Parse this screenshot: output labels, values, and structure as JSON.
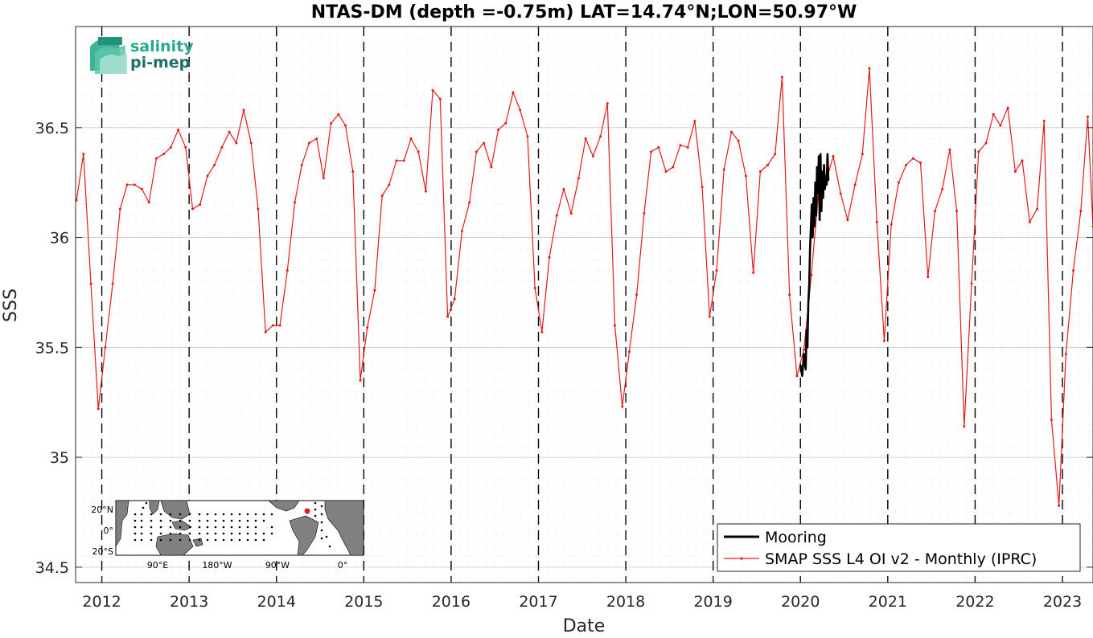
{
  "chart_data": {
    "type": "line",
    "title": "NTAS-DM (depth =-0.75m) LAT=14.74°N;LON=50.97°W",
    "xlabel": "Date",
    "ylabel": "SSS",
    "xlim": [
      2011.7,
      2023.35
    ],
    "ylim": [
      34.43,
      36.96
    ],
    "x_ticks": [
      2012,
      2013,
      2014,
      2015,
      2016,
      2017,
      2018,
      2019,
      2020,
      2021,
      2022,
      2023
    ],
    "x_tick_labels": [
      "2012",
      "2013",
      "2014",
      "2015",
      "2016",
      "2017",
      "2018",
      "2019",
      "2020",
      "2021",
      "2022",
      "2023"
    ],
    "y_ticks": [
      34.5,
      35,
      35.5,
      36,
      36.5
    ],
    "y_tick_labels": [
      "34.5",
      "35",
      "35.5",
      "36",
      "36.5"
    ],
    "grid": true,
    "year_markers": "dashed vertical lines at each Jan 1",
    "legend_position": "bottom-right",
    "series": [
      {
        "name": "Mooring",
        "color": "#000000",
        "x": [
          2020.0,
          2020.02,
          2020.04,
          2020.06,
          2020.07,
          2020.08,
          2020.09,
          2020.1,
          2020.11,
          2020.12,
          2020.13,
          2020.14,
          2020.15,
          2020.16,
          2020.17,
          2020.18,
          2020.19,
          2020.2,
          2020.21,
          2020.22,
          2020.23,
          2020.24,
          2020.25,
          2020.26,
          2020.27,
          2020.28,
          2020.29,
          2020.3,
          2020.31,
          2020.32
        ],
        "values": [
          35.42,
          35.37,
          35.47,
          35.4,
          35.58,
          35.5,
          35.7,
          35.78,
          35.95,
          36.05,
          36.15,
          36.0,
          36.18,
          36.05,
          36.25,
          36.1,
          36.32,
          36.2,
          36.37,
          36.08,
          36.38,
          36.12,
          36.3,
          36.18,
          36.33,
          36.22,
          36.28,
          36.24,
          36.38,
          36.26
        ]
      },
      {
        "name": "SMAP SSS L4 OI v2 - Monthly (IPRC)",
        "color": "#e41a1c",
        "x": [
          2011.71,
          2011.79,
          2011.875,
          2011.96,
          2012.04,
          2012.125,
          2012.21,
          2012.29,
          2012.375,
          2012.46,
          2012.54,
          2012.625,
          2012.71,
          2012.79,
          2012.875,
          2012.96,
          2013.04,
          2013.125,
          2013.21,
          2013.29,
          2013.375,
          2013.46,
          2013.54,
          2013.625,
          2013.71,
          2013.79,
          2013.875,
          2013.96,
          2014.04,
          2014.125,
          2014.21,
          2014.29,
          2014.375,
          2014.46,
          2014.54,
          2014.625,
          2014.71,
          2014.79,
          2014.875,
          2014.96,
          2015.04,
          2015.125,
          2015.21,
          2015.29,
          2015.375,
          2015.46,
          2015.54,
          2015.625,
          2015.71,
          2015.79,
          2015.875,
          2015.96,
          2016.04,
          2016.125,
          2016.21,
          2016.29,
          2016.375,
          2016.46,
          2016.54,
          2016.625,
          2016.71,
          2016.79,
          2016.875,
          2016.96,
          2017.04,
          2017.125,
          2017.21,
          2017.29,
          2017.375,
          2017.46,
          2017.54,
          2017.625,
          2017.71,
          2017.79,
          2017.875,
          2017.96,
          2018.04,
          2018.125,
          2018.21,
          2018.29,
          2018.375,
          2018.46,
          2018.54,
          2018.625,
          2018.71,
          2018.79,
          2018.875,
          2018.96,
          2019.04,
          2019.125,
          2019.21,
          2019.29,
          2019.375,
          2019.46,
          2019.54,
          2019.625,
          2019.71,
          2019.79,
          2019.875,
          2019.96,
          2020.04,
          2020.125,
          2020.21,
          2020.29,
          2020.375,
          2020.46,
          2020.54,
          2020.625,
          2020.71,
          2020.79,
          2020.875,
          2020.96,
          2021.04,
          2021.125,
          2021.21,
          2021.29,
          2021.375,
          2021.46,
          2021.54,
          2021.625,
          2021.71,
          2021.79,
          2021.875,
          2021.96,
          2022.04,
          2022.125,
          2022.21,
          2022.29,
          2022.375,
          2022.46,
          2022.54,
          2022.625,
          2022.71,
          2022.79,
          2022.875,
          2022.96,
          2023.04,
          2023.125,
          2023.21,
          2023.29,
          2023.35
        ],
        "values": [
          36.17,
          36.38,
          35.79,
          35.22,
          35.5,
          35.79,
          36.13,
          36.24,
          36.24,
          36.22,
          36.16,
          36.36,
          36.38,
          36.41,
          36.49,
          36.41,
          36.13,
          36.15,
          36.28,
          36.33,
          36.41,
          36.48,
          36.43,
          36.58,
          36.43,
          36.13,
          35.57,
          35.6,
          35.6,
          35.85,
          36.16,
          36.33,
          36.43,
          36.45,
          36.27,
          36.52,
          36.56,
          36.51,
          36.3,
          35.35,
          35.59,
          35.76,
          36.19,
          36.24,
          36.35,
          36.35,
          36.45,
          36.39,
          36.21,
          36.67,
          36.63,
          35.64,
          35.72,
          36.03,
          36.16,
          36.39,
          36.43,
          36.32,
          36.49,
          36.52,
          36.66,
          36.58,
          36.46,
          35.77,
          35.57,
          35.91,
          36.1,
          36.22,
          36.11,
          36.27,
          36.45,
          36.37,
          36.46,
          36.61,
          35.6,
          35.23,
          35.48,
          35.74,
          36.11,
          36.39,
          36.41,
          36.3,
          36.32,
          36.42,
          36.41,
          36.53,
          36.23,
          35.64,
          35.85,
          36.31,
          36.48,
          36.44,
          36.28,
          35.84,
          36.3,
          36.33,
          36.38,
          36.73,
          35.74,
          35.37,
          35.49,
          35.83,
          36.22,
          36.25,
          36.37,
          36.2,
          36.08,
          36.24,
          36.38,
          36.77,
          36.07,
          35.53,
          36.06,
          36.25,
          36.33,
          36.36,
          36.34,
          35.82,
          36.12,
          36.22,
          36.4,
          36.12,
          35.14,
          35.79,
          36.39,
          36.43,
          36.56,
          36.51,
          36.59,
          36.3,
          36.35,
          36.07,
          36.13,
          36.53,
          35.17,
          34.78,
          35.47,
          35.85,
          36.12,
          36.55,
          36.05
        ]
      }
    ]
  },
  "logo": {
    "line1": "salinity",
    "line2": "pi-mep"
  },
  "inset_map": {
    "lat_labels": [
      "20°N",
      "0°",
      "20°S"
    ],
    "lon_labels": [
      "90°E",
      "180°W",
      "90°W",
      "0°"
    ],
    "marker_color": "#e41a1c"
  }
}
